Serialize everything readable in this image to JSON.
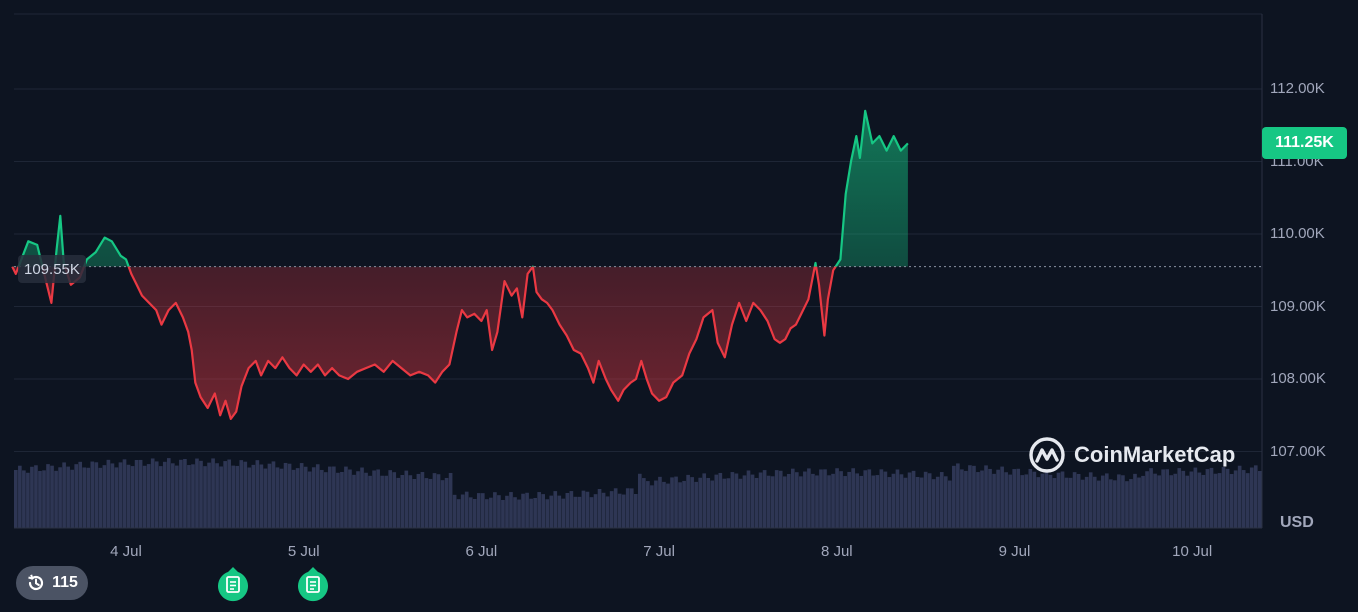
{
  "chart_data": {
    "type": "line",
    "currency_label": "USD",
    "y_ticks": [
      107000,
      108000,
      109000,
      110000,
      111000,
      112000
    ],
    "y_tick_labels": [
      "107.00K",
      "108.00K",
      "109.00K",
      "110.00K",
      "111.00K",
      "112.00K"
    ],
    "ylim": [
      106000,
      113000
    ],
    "x_ticks": [
      {
        "day": 1,
        "label": "4 Jul"
      },
      {
        "day": 2,
        "label": "5 Jul"
      },
      {
        "day": 3,
        "label": "6 Jul"
      },
      {
        "day": 4,
        "label": "7 Jul"
      },
      {
        "day": 5,
        "label": "8 Jul"
      },
      {
        "day": 6,
        "label": "9 Jul"
      },
      {
        "day": 7,
        "label": "10 Jul"
      }
    ],
    "open_price": 109550,
    "open_price_label": "109.55K",
    "current_price": 111250,
    "current_price_label": "111.25K",
    "colors": {
      "up": "#16c784",
      "down": "#ea3943",
      "volume": "#3a4266"
    },
    "price_series": [
      [
        0.36,
        109550
      ],
      [
        0.38,
        109450
      ],
      [
        0.45,
        109900
      ],
      [
        0.5,
        109850
      ],
      [
        0.55,
        109350
      ],
      [
        0.58,
        109050
      ],
      [
        0.61,
        109800
      ],
      [
        0.63,
        110250
      ],
      [
        0.65,
        109600
      ],
      [
        0.69,
        109300
      ],
      [
        0.74,
        109400
      ],
      [
        0.78,
        109650
      ],
      [
        0.83,
        109750
      ],
      [
        0.88,
        109950
      ],
      [
        0.92,
        109900
      ],
      [
        0.97,
        109700
      ],
      [
        1.0,
        109650
      ],
      [
        1.03,
        109450
      ],
      [
        1.06,
        109300
      ],
      [
        1.09,
        109150
      ],
      [
        1.13,
        109050
      ],
      [
        1.17,
        108950
      ],
      [
        1.2,
        108750
      ],
      [
        1.24,
        108950
      ],
      [
        1.28,
        109050
      ],
      [
        1.32,
        108850
      ],
      [
        1.35,
        108650
      ],
      [
        1.37,
        108400
      ],
      [
        1.39,
        107950
      ],
      [
        1.42,
        107750
      ],
      [
        1.46,
        107600
      ],
      [
        1.5,
        107800
      ],
      [
        1.53,
        107500
      ],
      [
        1.56,
        107700
      ],
      [
        1.59,
        107450
      ],
      [
        1.62,
        107550
      ],
      [
        1.65,
        107900
      ],
      [
        1.69,
        108150
      ],
      [
        1.73,
        108250
      ],
      [
        1.76,
        108050
      ],
      [
        1.8,
        108250
      ],
      [
        1.84,
        108150
      ],
      [
        1.88,
        108300
      ],
      [
        1.92,
        108150
      ],
      [
        1.96,
        108050
      ],
      [
        2.0,
        108200
      ],
      [
        2.04,
        108100
      ],
      [
        2.08,
        108200
      ],
      [
        2.12,
        108050
      ],
      [
        2.16,
        108150
      ],
      [
        2.2,
        108050
      ],
      [
        2.25,
        108000
      ],
      [
        2.3,
        108100
      ],
      [
        2.35,
        108150
      ],
      [
        2.4,
        108200
      ],
      [
        2.45,
        108100
      ],
      [
        2.5,
        108250
      ],
      [
        2.55,
        108150
      ],
      [
        2.6,
        108050
      ],
      [
        2.65,
        108100
      ],
      [
        2.7,
        108050
      ],
      [
        2.74,
        107950
      ],
      [
        2.78,
        108100
      ],
      [
        2.82,
        108200
      ],
      [
        2.86,
        108650
      ],
      [
        2.89,
        108950
      ],
      [
        2.92,
        108850
      ],
      [
        2.96,
        108900
      ],
      [
        3.0,
        108800
      ],
      [
        3.03,
        108950
      ],
      [
        3.06,
        108400
      ],
      [
        3.09,
        108650
      ],
      [
        3.13,
        109350
      ],
      [
        3.17,
        109150
      ],
      [
        3.2,
        109250
      ],
      [
        3.23,
        108850
      ],
      [
        3.26,
        109450
      ],
      [
        3.29,
        109550
      ],
      [
        3.31,
        109200
      ],
      [
        3.34,
        109100
      ],
      [
        3.37,
        109050
      ],
      [
        3.4,
        108950
      ],
      [
        3.44,
        108750
      ],
      [
        3.48,
        108600
      ],
      [
        3.52,
        108400
      ],
      [
        3.56,
        108350
      ],
      [
        3.6,
        108150
      ],
      [
        3.63,
        107950
      ],
      [
        3.66,
        108250
      ],
      [
        3.7,
        108000
      ],
      [
        3.73,
        107850
      ],
      [
        3.77,
        107700
      ],
      [
        3.8,
        107850
      ],
      [
        3.84,
        107950
      ],
      [
        3.87,
        108000
      ],
      [
        3.9,
        108250
      ],
      [
        3.93,
        108000
      ],
      [
        3.96,
        107800
      ],
      [
        4.0,
        107700
      ],
      [
        4.04,
        107750
      ],
      [
        4.08,
        107950
      ],
      [
        4.13,
        108050
      ],
      [
        4.17,
        108350
      ],
      [
        4.21,
        108550
      ],
      [
        4.25,
        108850
      ],
      [
        4.3,
        108950
      ],
      [
        4.33,
        108500
      ],
      [
        4.37,
        108300
      ],
      [
        4.41,
        108750
      ],
      [
        4.45,
        109050
      ],
      [
        4.49,
        108800
      ],
      [
        4.53,
        109050
      ],
      [
        4.57,
        108950
      ],
      [
        4.61,
        108800
      ],
      [
        4.65,
        108550
      ],
      [
        4.68,
        108500
      ],
      [
        4.71,
        108550
      ],
      [
        4.74,
        108700
      ],
      [
        4.77,
        108750
      ],
      [
        4.8,
        108900
      ],
      [
        4.84,
        109100
      ],
      [
        4.88,
        109600
      ],
      [
        4.9,
        109300
      ],
      [
        4.93,
        108600
      ],
      [
        4.95,
        109100
      ],
      [
        4.98,
        109500
      ],
      [
        5.02,
        109650
      ],
      [
        5.05,
        110550
      ],
      [
        5.08,
        111000
      ],
      [
        5.11,
        111350
      ],
      [
        5.13,
        111050
      ],
      [
        5.16,
        111700
      ],
      [
        5.2,
        111250
      ],
      [
        5.24,
        111350
      ],
      [
        5.28,
        111150
      ],
      [
        5.32,
        111350
      ],
      [
        5.36,
        111150
      ],
      [
        5.4,
        111250
      ]
    ]
  },
  "watermark": {
    "brand": "CoinMarketCap"
  },
  "history_badge": {
    "count": "115",
    "icon": "history-icon"
  },
  "event_markers": [
    {
      "day": 1.6,
      "icon": "document-icon"
    },
    {
      "day": 2.05,
      "icon": "document-icon"
    }
  ]
}
